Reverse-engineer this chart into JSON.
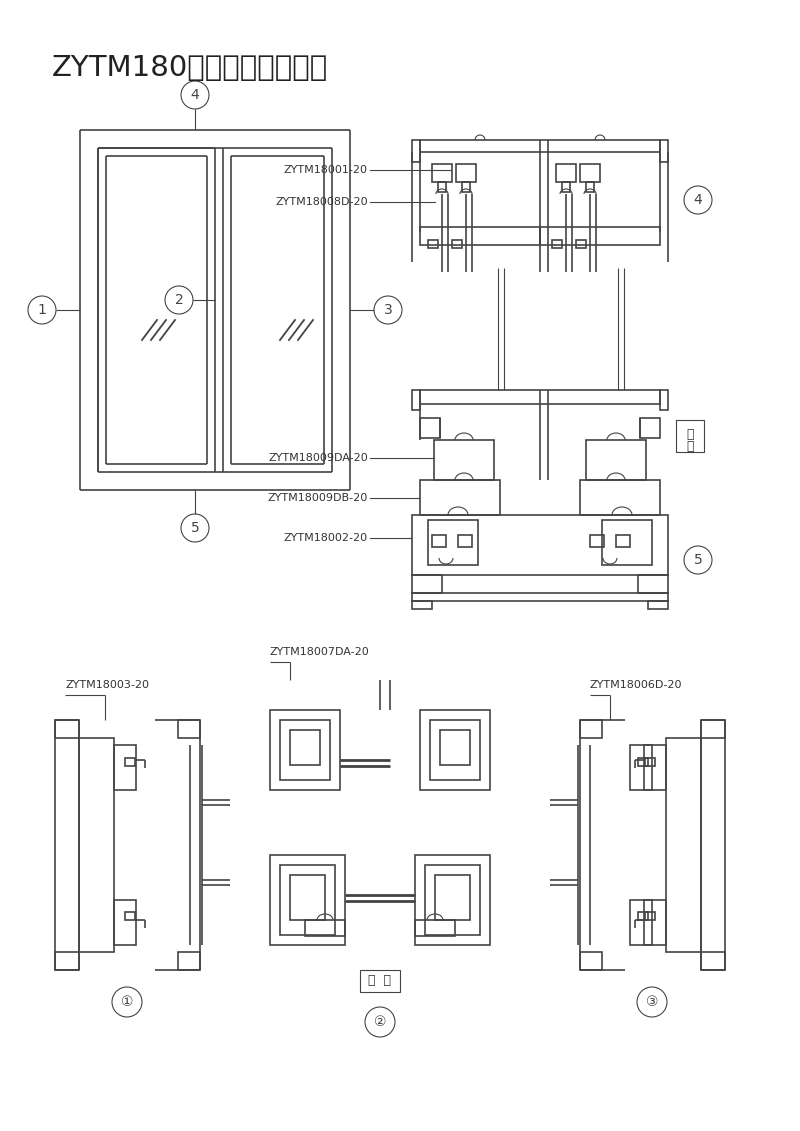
{
  "title": "ZYTM180系列推拉门结构图",
  "bg_color": "#ffffff",
  "line_color": "#444444",
  "lw": 1.2,
  "lw_thin": 0.8,
  "labels": {
    "label1": "ZYTM18001-20",
    "label2": "ZYTM18008D-20",
    "label3": "ZYTM18009DA-20",
    "label4": "ZYTM18009DB-20",
    "label5": "ZYTM18002-20",
    "label6": "ZYTM18003-20",
    "label7": "ZYTM18007DA-20",
    "label8": "ZYTM18006D-20"
  },
  "outdoor_label": "室外",
  "outdoor_label2": "室  外"
}
